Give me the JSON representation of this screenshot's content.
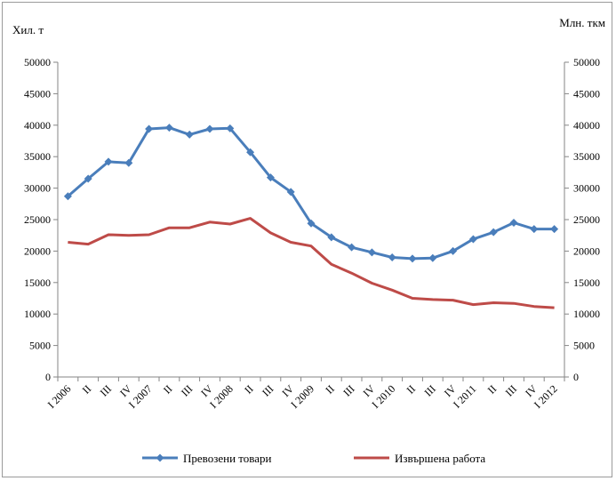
{
  "chart_data": {
    "type": "line",
    "title": "",
    "ylabel_left": "Хил. т",
    "ylabel_right": "Млн. ткм",
    "ylim": [
      0,
      50000
    ],
    "yticks": [
      0,
      5000,
      10000,
      15000,
      20000,
      25000,
      30000,
      35000,
      40000,
      45000,
      50000
    ],
    "grid": false,
    "legend": "bottom",
    "categories": [
      "I 2006",
      "II",
      "III",
      "IV",
      "I 2007",
      "II",
      "III",
      "IV",
      "I 2008",
      "II",
      "III",
      "IV",
      "I 2009",
      "II",
      "III",
      "IV",
      "I 2010",
      "II",
      "III",
      "IV",
      "I 2011",
      "II",
      "III",
      "IV",
      "I 2012"
    ],
    "series": [
      {
        "name": "Превозени товари",
        "color": "#4a7ebb",
        "marker": "diamond",
        "values": [
          28700,
          31500,
          34200,
          34000,
          39400,
          39600,
          38500,
          39400,
          39500,
          35700,
          31700,
          29400,
          24400,
          22200,
          20600,
          19800,
          19000,
          18800,
          18900,
          20000,
          21900,
          23000,
          24500,
          23500,
          23500
        ]
      },
      {
        "name": "Извършена работа",
        "color": "#be4b48",
        "marker": "none",
        "values": [
          21400,
          21100,
          22600,
          22500,
          22600,
          23700,
          23700,
          24600,
          24300,
          25200,
          22900,
          21400,
          20800,
          17900,
          16500,
          14900,
          13800,
          12500,
          12300,
          12200,
          11500,
          11800,
          11700,
          11200,
          11000
        ]
      }
    ]
  }
}
